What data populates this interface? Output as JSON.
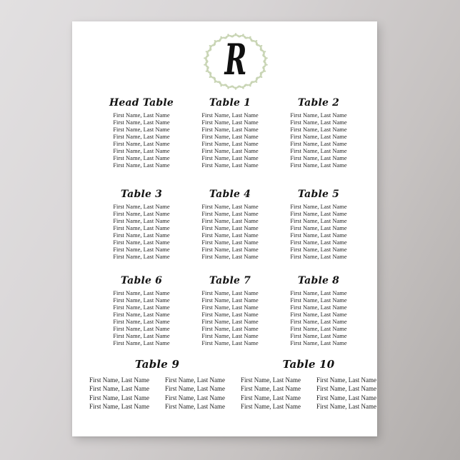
{
  "monogram": {
    "letter": "R"
  },
  "colors": {
    "wreath_leaf": "#c9d5b5",
    "poster_bg": "#ffffff",
    "text": "#1d1d1d"
  },
  "tables": [
    {
      "name": "Head Table",
      "guests": [
        "First Name, Last Name",
        "First Name, Last Name",
        "First Name, Last Name",
        "First Name, Last Name",
        "First Name, Last Name",
        "First Name, Last Name",
        "First Name, Last Name",
        "First Name, Last Name"
      ]
    },
    {
      "name": "Table 1",
      "guests": [
        "First Name, Last Name",
        "First Name, Last Name",
        "First Name, Last Name",
        "First Name, Last Name",
        "First Name, Last Name",
        "First Name, Last Name",
        "First Name, Last Name",
        "First Name, Last Name"
      ]
    },
    {
      "name": "Table 2",
      "guests": [
        "First Name, Last Name",
        "First Name, Last Name",
        "First Name, Last Name",
        "First Name, Last Name",
        "First Name, Last Name",
        "First Name, Last Name",
        "First Name, Last Name",
        "First Name, Last Name"
      ]
    },
    {
      "name": "Table 3",
      "guests": [
        "First Name, Last Name",
        "First Name, Last Name",
        "First Name, Last Name",
        "First Name, Last Name",
        "First Name, Last Name",
        "First Name, Last Name",
        "First Name, Last Name",
        "First Name, Last Name"
      ]
    },
    {
      "name": "Table 4",
      "guests": [
        "First Name, Last Name",
        "First Name, Last Name",
        "First Name, Last Name",
        "First Name, Last Name",
        "First Name, Last Name",
        "First Name, Last Name",
        "First Name, Last Name",
        "First Name, Last Name"
      ]
    },
    {
      "name": "Table 5",
      "guests": [
        "First Name, Last Name",
        "First Name, Last Name",
        "First Name, Last Name",
        "First Name, Last Name",
        "First Name, Last Name",
        "First Name, Last Name",
        "First Name, Last Name",
        "First Name, Last Name"
      ]
    },
    {
      "name": "Table 6",
      "guests": [
        "First Name, Last Name",
        "First Name, Last Name",
        "First Name, Last Name",
        "First Name, Last Name",
        "First Name, Last Name",
        "First Name, Last Name",
        "First Name, Last Name",
        "First Name, Last Name"
      ]
    },
    {
      "name": "Table 7",
      "guests": [
        "First Name, Last Name",
        "First Name, Last Name",
        "First Name, Last Name",
        "First Name, Last Name",
        "First Name, Last Name",
        "First Name, Last Name",
        "First Name, Last Name",
        "First Name, Last Name"
      ]
    },
    {
      "name": "Table 8",
      "guests": [
        "First Name, Last Name",
        "First Name, Last Name",
        "First Name, Last Name",
        "First Name, Last Name",
        "First Name, Last Name",
        "First Name, Last Name",
        "First Name, Last Name",
        "First Name, Last Name"
      ]
    },
    {
      "name": "Table 9",
      "columns": [
        [
          "First Name, Last Name",
          "First Name, Last Name",
          "First Name, Last Name",
          "First Name, Last Name"
        ],
        [
          "First Name, Last Name",
          "First Name, Last Name",
          "First Name, Last Name",
          "First Name, Last Name"
        ]
      ]
    },
    {
      "name": "Table 10",
      "columns": [
        [
          "First Name, Last Name",
          "First Name, Last Name",
          "First Name, Last Name",
          "First Name, Last Name"
        ],
        [
          "First Name, Last Name",
          "First Name, Last Name",
          "First Name, Last Name",
          "First Name, Last Name"
        ]
      ]
    }
  ]
}
